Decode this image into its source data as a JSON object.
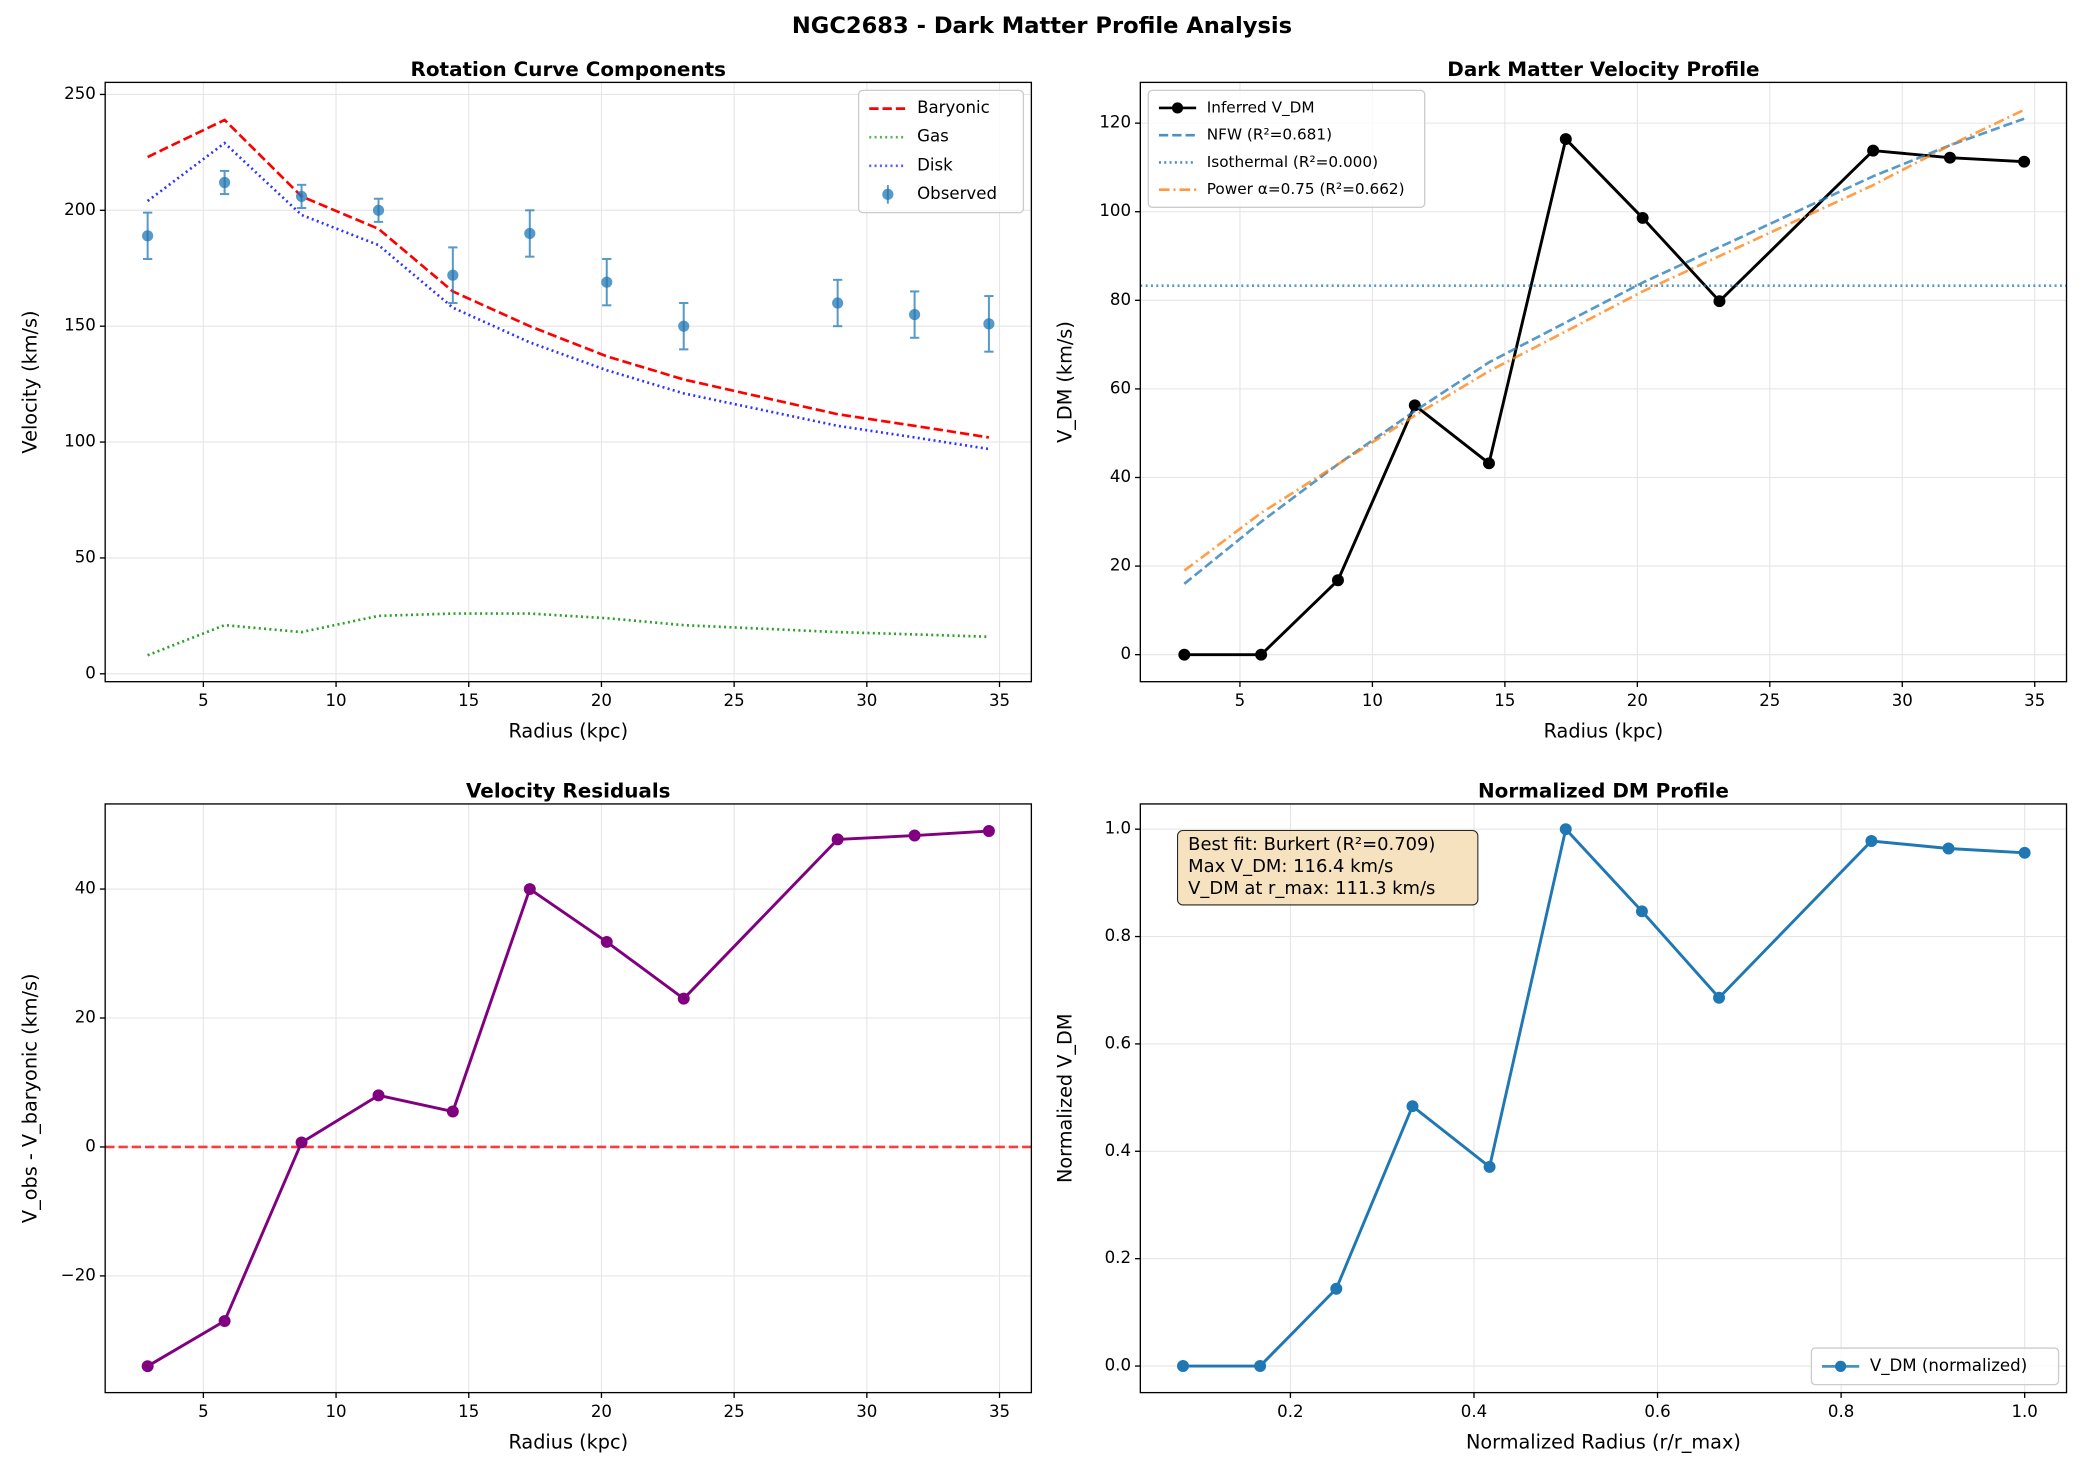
{
  "title": "NGC2683 - Dark Matter Profile Analysis",
  "chart_data": [
    {
      "type": "line",
      "title": "Rotation Curve Components",
      "xlabel": "Radius (kpc)",
      "ylabel": "Velocity (km/s)",
      "x": [
        2.9,
        5.8,
        8.7,
        11.6,
        14.4,
        17.3,
        20.2,
        23.1,
        28.9,
        31.8,
        34.6
      ],
      "xlim": [
        1.3,
        36.2
      ],
      "ylim": [
        -3.4,
        255.2
      ],
      "xticks": [
        5,
        10,
        15,
        20,
        25,
        30,
        35
      ],
      "yticks": [
        0,
        50,
        100,
        150,
        200,
        250
      ],
      "grid": true,
      "legend": "upper right",
      "series": [
        {
          "name": "Baryonic",
          "color": "#ff0000",
          "linestyle": "dashed",
          "values": [
            223,
            239,
            206,
            192,
            165,
            150,
            137,
            127,
            112,
            107,
            102
          ]
        },
        {
          "name": "Gas",
          "color": "#2ca02c",
          "linestyle": "dotted",
          "values": [
            8,
            21,
            18,
            25,
            26,
            26,
            24,
            21,
            18,
            17,
            16
          ]
        },
        {
          "name": "Disk",
          "color": "#3333ff",
          "linestyle": "dotted",
          "values": [
            204,
            229,
            198,
            185,
            158,
            143,
            131,
            121,
            107,
            102,
            97
          ]
        },
        {
          "name": "Observed",
          "color": "#1f77b4",
          "linestyle": "none",
          "marker": true,
          "values": [
            189,
            212,
            206,
            200,
            172,
            190,
            169,
            150,
            160,
            155,
            151
          ],
          "errors": [
            10,
            5,
            5,
            5,
            12,
            10,
            10,
            10,
            10,
            10,
            12
          ]
        }
      ]
    },
    {
      "type": "line",
      "title": "Dark Matter Velocity Profile",
      "xlabel": "Radius (kpc)",
      "ylabel": "V_DM (km/s)",
      "x": [
        2.9,
        5.8,
        8.7,
        11.6,
        14.4,
        17.3,
        20.2,
        23.1,
        28.9,
        31.8,
        34.6
      ],
      "xlim": [
        1.24,
        36.2
      ],
      "ylim": [
        -6.1,
        129.2
      ],
      "xticks": [
        5,
        10,
        15,
        20,
        25,
        30,
        35
      ],
      "yticks": [
        0,
        20,
        40,
        60,
        80,
        100,
        120
      ],
      "grid": true,
      "legend": "upper left",
      "series": [
        {
          "name": "Inferred V_DM",
          "color": "#000000",
          "linestyle": "solid",
          "marker": true,
          "values": [
            0,
            0,
            16.8,
            56.3,
            43.2,
            116.4,
            98.6,
            79.8,
            113.8,
            112.2,
            111.3
          ]
        },
        {
          "name": "NFW (R²=0.681)",
          "color": "#1f77b4",
          "linestyle": "dashed",
          "values": [
            16,
            30,
            43,
            55,
            66,
            75,
            84,
            92,
            108,
            115,
            121
          ]
        },
        {
          "name": "Isothermal (R²=0.000)",
          "color": "#1f77b4",
          "linestyle": "dotted",
          "hline": 83.3
        },
        {
          "name": "Power α=0.75 (R²=0.662)",
          "color": "#ff7f0e",
          "linestyle": "dashdot",
          "values": [
            19,
            32,
            43,
            54,
            64,
            73,
            82,
            90,
            106,
            115,
            123
          ]
        }
      ]
    },
    {
      "type": "line",
      "title": "Velocity Residuals",
      "xlabel": "Radius (kpc)",
      "ylabel": "V_obs - V_baryonic (km/s)",
      "x": [
        2.9,
        5.8,
        8.7,
        11.6,
        14.4,
        17.3,
        20.2,
        23.1,
        28.9,
        31.8,
        34.6
      ],
      "xlim": [
        1.3,
        36.2
      ],
      "ylim": [
        -38.1,
        53.2
      ],
      "xticks": [
        5,
        10,
        15,
        20,
        25,
        30,
        35
      ],
      "yticks": [
        {
          "value": -20,
          "label": "−20"
        },
        0,
        20,
        40
      ],
      "grid": true,
      "hline": {
        "value": 0,
        "color": "#ff0000",
        "linestyle": "dashed"
      },
      "series": [
        {
          "color": "#800080",
          "linestyle": "solid",
          "marker": true,
          "values": [
            -34,
            -27,
            0.7,
            8,
            5.5,
            40,
            31.8,
            23,
            47.7,
            48.3,
            49
          ]
        }
      ]
    },
    {
      "type": "line",
      "title": "Normalized DM Profile",
      "xlabel": "Normalized Radius (r/r_max)",
      "ylabel": "Normalized V_DM",
      "x": [
        0.083,
        0.167,
        0.25,
        0.333,
        0.417,
        0.5,
        0.583,
        0.667,
        0.833,
        0.917,
        1.0
      ],
      "xlim": [
        0.0365,
        1.0456
      ],
      "ylim": [
        -0.0495,
        1.047
      ],
      "xticks": [
        0.2,
        0.4,
        0.6,
        0.8,
        {
          "value": 1.0,
          "label": "1.0"
        }
      ],
      "yticks": [
        {
          "value": 0,
          "label": "0.0"
        },
        0.2,
        0.4,
        0.6,
        0.8,
        {
          "value": 1.0,
          "label": "1.0"
        }
      ],
      "grid": true,
      "legend": "lower right",
      "annotation": [
        "Best fit: Burkert (R²=0.709)",
        "Max V_DM: 116.4 km/s",
        "V_DM at r_max: 111.3 km/s"
      ],
      "series": [
        {
          "name": "V_DM (normalized)",
          "color": "#1f77b4",
          "linestyle": "solid",
          "marker": true,
          "values": [
            0,
            0,
            0.144,
            0.484,
            0.371,
            1.0,
            0.847,
            0.686,
            0.978,
            0.964,
            0.956
          ]
        }
      ]
    }
  ]
}
